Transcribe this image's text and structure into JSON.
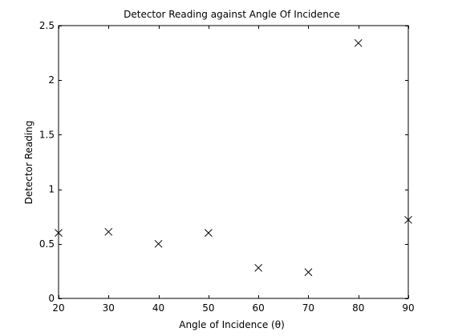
{
  "chart_data": {
    "type": "scatter",
    "title": "Detector Reading against Angle Of Incidence",
    "xlabel": "Angle of Incidence (θ)",
    "ylabel": "Detector Reading",
    "xlim": [
      20,
      90
    ],
    "ylim": [
      0,
      2.5
    ],
    "xticks": [
      20,
      30,
      40,
      50,
      60,
      70,
      80,
      90
    ],
    "yticks": [
      0,
      0.5,
      1,
      1.5,
      2,
      2.5
    ],
    "ytick_labels": [
      "0",
      "0.5",
      "1",
      "1.5",
      "2",
      "2.5"
    ],
    "marker": "x",
    "grid": false,
    "x": [
      20,
      30,
      40,
      50,
      60,
      70,
      80,
      90
    ],
    "y": [
      0.6,
      0.61,
      0.5,
      0.6,
      0.28,
      0.24,
      2.34,
      0.72
    ]
  }
}
